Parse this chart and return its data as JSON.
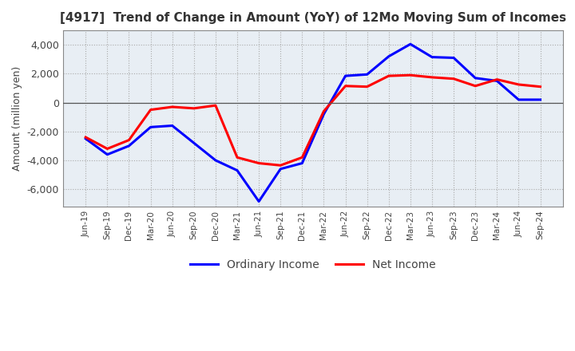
{
  "title": "[4917]  Trend of Change in Amount (YoY) of 12Mo Moving Sum of Incomes",
  "ylabel": "Amount (million yen)",
  "ylim": [
    -7200,
    5000
  ],
  "yticks": [
    -6000,
    -4000,
    -2000,
    0,
    2000,
    4000
  ],
  "ordinary_income_color": "#0000FF",
  "net_income_color": "#FF0000",
  "background_color": "#FFFFFF",
  "plot_bg_color": "#E8EEF4",
  "grid_color": "#AAAAAA",
  "x_labels": [
    "Jun-19",
    "Sep-19",
    "Dec-19",
    "Mar-20",
    "Jun-20",
    "Sep-20",
    "Dec-20",
    "Mar-21",
    "Jun-21",
    "Sep-21",
    "Dec-21",
    "Mar-22",
    "Jun-22",
    "Sep-22",
    "Dec-22",
    "Mar-23",
    "Jun-23",
    "Sep-23",
    "Dec-23",
    "Mar-24",
    "Jun-24",
    "Sep-24"
  ],
  "ordinary_income": [
    -2500,
    -3600,
    -3000,
    -1700,
    -1600,
    -2800,
    -4000,
    -4700,
    -6850,
    -4600,
    -4200,
    -800,
    1850,
    1950,
    3200,
    4050,
    3150,
    3100,
    1700,
    1500,
    200,
    200
  ],
  "net_income": [
    -2400,
    -3200,
    -2600,
    -500,
    -300,
    -400,
    -200,
    -3800,
    -4200,
    -4350,
    -3800,
    -600,
    1150,
    1100,
    1850,
    1900,
    1750,
    1650,
    1150,
    1600,
    1250,
    1100
  ]
}
